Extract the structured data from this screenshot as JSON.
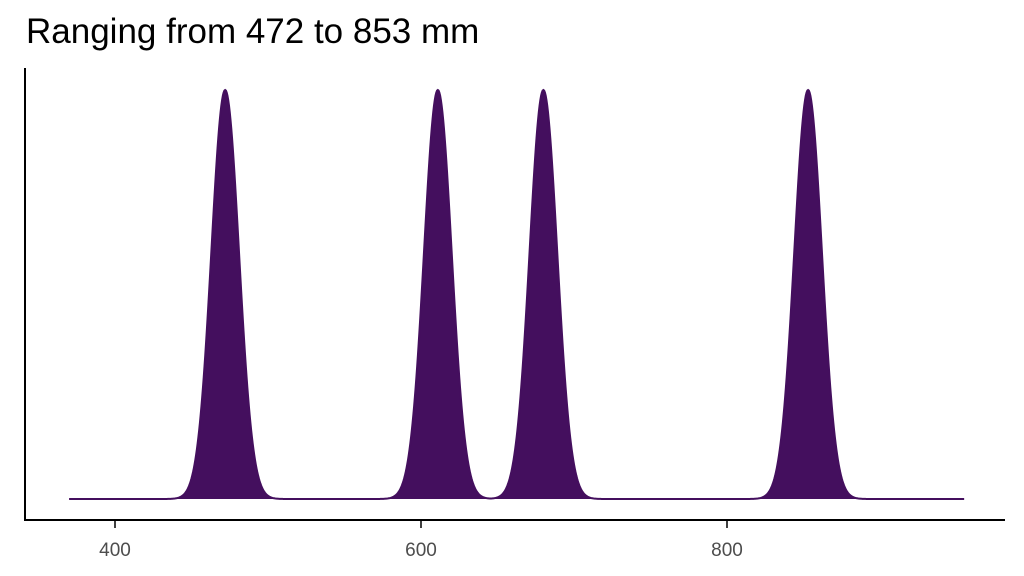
{
  "chart_data": {
    "type": "area",
    "title": "Ranging from 472 to 853 mm",
    "xlabel": "",
    "ylabel": "",
    "xlim": [
      350,
      975
    ],
    "x_range": [
      370,
      955
    ],
    "xticks": [
      400,
      600,
      800
    ],
    "peak_centers": [
      472,
      611,
      680,
      853
    ],
    "peak_width_sd": 9,
    "grid": false,
    "legend": "none",
    "fill_color": "#440f5e",
    "line_color": "#440f5e",
    "axis_color": "#000000",
    "tick_label_color": "#4d4d4d"
  }
}
